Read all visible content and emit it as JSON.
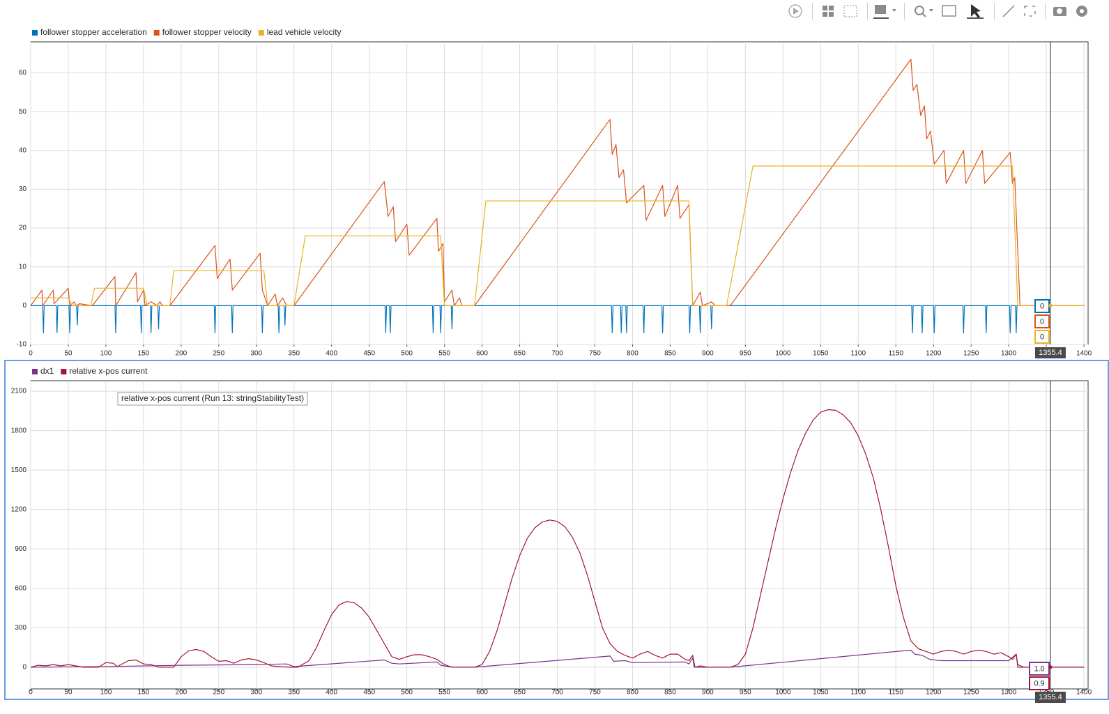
{
  "chart_data": [
    {
      "type": "line",
      "xlim": [
        0,
        1405.5
      ],
      "ylim": [
        -10,
        68
      ],
      "xticks": [
        0,
        50,
        100,
        150,
        200,
        250,
        300,
        350,
        400,
        450,
        500,
        550,
        600,
        650,
        700,
        750,
        800,
        850,
        900,
        950,
        1000,
        1050,
        1100,
        1150,
        1200,
        1250,
        1300,
        1350,
        1400
      ],
      "yticks": [
        -10,
        0,
        10,
        20,
        30,
        40,
        50,
        60
      ],
      "grid": true,
      "cursor": 1355.4,
      "series": [
        {
          "name": "follower stopper acceleration",
          "color": "#0072bd",
          "cursor_value": 0,
          "x": [
            0,
            16,
            17,
            18,
            34,
            35,
            36,
            51,
            52,
            53,
            61,
            62,
            63,
            112,
            113,
            114,
            146,
            147,
            148,
            159,
            160,
            161,
            169,
            170,
            171,
            244,
            245,
            246,
            267,
            268,
            269,
            307,
            308,
            309,
            329,
            330,
            331,
            337,
            338,
            339,
            471,
            472,
            473,
            477,
            478,
            479,
            534,
            535,
            536,
            544,
            545,
            546,
            559,
            560,
            561,
            772,
            773,
            774,
            784,
            785,
            786,
            791,
            792,
            793,
            814,
            815,
            816,
            839,
            840,
            841,
            875,
            876,
            877,
            889,
            890,
            891,
            904,
            905,
            906,
            1171,
            1172,
            1173,
            1184,
            1185,
            1186,
            1200,
            1201,
            1202,
            1239,
            1240,
            1241,
            1269,
            1270,
            1271,
            1301,
            1302,
            1303,
            1309,
            1310,
            1311,
            1400
          ],
          "values": [
            0,
            0,
            -7,
            0,
            0,
            -7,
            0,
            0,
            -7,
            0,
            0,
            -5,
            0,
            0,
            -7,
            0,
            0,
            -7,
            0,
            0,
            -7,
            0,
            0,
            -6,
            0,
            0,
            -7,
            0,
            0,
            -7,
            0,
            0,
            -7,
            0,
            0,
            -7,
            0,
            0,
            -5,
            0,
            0,
            -7,
            0,
            0,
            -7,
            0,
            0,
            -7,
            0,
            0,
            -7,
            0,
            0,
            -6,
            0,
            0,
            -7,
            0,
            0,
            -7,
            0,
            0,
            -7,
            0,
            0,
            -7,
            0,
            0,
            -7,
            0,
            0,
            -7,
            0,
            0,
            -7,
            0,
            0,
            -6,
            0,
            0,
            -7,
            0,
            0,
            -7,
            0,
            0,
            -7,
            0,
            0,
            -7,
            0,
            0,
            -7,
            0,
            0,
            -7,
            0,
            0,
            -7,
            0,
            0
          ]
        },
        {
          "name": "follower stopper velocity",
          "color": "#d95319",
          "cursor_value": 0,
          "x": [
            0,
            15,
            16,
            30,
            31,
            50,
            52,
            58,
            60,
            65,
            82,
            112,
            113,
            140,
            142,
            150,
            152,
            160,
            168,
            172,
            175,
            185,
            245,
            248,
            265,
            268,
            305,
            308,
            315,
            325,
            328,
            335,
            340,
            350,
            470,
            475,
            482,
            485,
            500,
            503,
            540,
            542,
            548,
            550,
            560,
            563,
            570,
            573,
            590,
            770,
            773,
            778,
            782,
            788,
            792,
            815,
            818,
            840,
            843,
            860,
            863,
            875,
            880,
            890,
            893,
            905,
            910,
            930,
            1170,
            1173,
            1178,
            1183,
            1188,
            1191,
            1196,
            1201,
            1214,
            1217,
            1240,
            1243,
            1265,
            1268,
            1302,
            1305,
            1308,
            1315,
            1320,
            1400
          ],
          "values": [
            0,
            4,
            0,
            4,
            0.5,
            4.5,
            0,
            1,
            0,
            0.5,
            0,
            7.5,
            0,
            8.5,
            1,
            4,
            0,
            1,
            0,
            1,
            0,
            0,
            15.5,
            7,
            12,
            4,
            13.5,
            4,
            0,
            3,
            0,
            2,
            0,
            0,
            32,
            23,
            25.5,
            16.5,
            21,
            13,
            22.5,
            14,
            16,
            1,
            4,
            0,
            2,
            0,
            0,
            48,
            39,
            41.5,
            33,
            35,
            26.5,
            31,
            22,
            31,
            23,
            31,
            22.5,
            26,
            0,
            3.5,
            0,
            1,
            0,
            0,
            63.5,
            55.5,
            57,
            49,
            51.5,
            43,
            45,
            36.5,
            40,
            31.5,
            40,
            31.5,
            40,
            31.5,
            39.5,
            31.5,
            33,
            0,
            0,
            0
          ]
        },
        {
          "name": "lead vehicle velocity",
          "color": "#edb120",
          "cursor_value": 0,
          "x": [
            0,
            50,
            55,
            80,
            85,
            150,
            155,
            185,
            190,
            310,
            315,
            350,
            365,
            545,
            550,
            590,
            605,
            875,
            880,
            925,
            960,
            1305,
            1312,
            1400
          ],
          "values": [
            2,
            2,
            0,
            0,
            4.5,
            4.5,
            0,
            0,
            9,
            9,
            0,
            0,
            18,
            18,
            0,
            0,
            27,
            27,
            0,
            0,
            36,
            36,
            0,
            0
          ]
        }
      ]
    },
    {
      "type": "line",
      "xlim": [
        0,
        1405.5
      ],
      "ylim": [
        -165,
        2180
      ],
      "xticks": [
        0,
        50,
        100,
        150,
        200,
        250,
        300,
        350,
        400,
        450,
        500,
        550,
        600,
        650,
        700,
        750,
        800,
        850,
        900,
        950,
        1000,
        1050,
        1100,
        1150,
        1200,
        1250,
        1300,
        1350,
        1400
      ],
      "yticks": [
        0,
        300,
        600,
        900,
        1200,
        1500,
        1800,
        2100
      ],
      "grid": true,
      "cursor": 1355.4,
      "annotation": "relative x-pos current (Run 13: stringStabilityTest)",
      "series": [
        {
          "name": "dx1",
          "color": "#7e2f8e",
          "cursor_value": {
            "value": 1,
            "label": "1.0"
          },
          "x": [
            0,
            100,
            200,
            300,
            340,
            350,
            470,
            480,
            490,
            540,
            545,
            560,
            590,
            770,
            775,
            790,
            800,
            870,
            875,
            880,
            882,
            900,
            930,
            1170,
            1175,
            1185,
            1195,
            1210,
            1300,
            1310,
            1312,
            1320,
            1400
          ],
          "values": [
            0,
            5,
            15,
            20,
            25,
            5,
            55,
            30,
            25,
            40,
            15,
            0,
            0,
            85,
            45,
            50,
            35,
            40,
            25,
            70,
            0,
            0,
            0,
            130,
            100,
            90,
            60,
            50,
            50,
            100,
            20,
            0,
            0
          ]
        },
        {
          "name": "relative x-pos current",
          "color": "#a2142f",
          "cursor_value": {
            "value": 0.9,
            "label": "0.9"
          },
          "x": [
            0,
            10,
            20,
            30,
            40,
            50,
            60,
            70,
            90,
            100,
            110,
            115,
            130,
            140,
            150,
            160,
            170,
            190,
            200,
            210,
            220,
            230,
            240,
            250,
            260,
            270,
            280,
            290,
            300,
            310,
            320,
            330,
            345,
            355,
            370,
            380,
            390,
            400,
            410,
            420,
            430,
            440,
            450,
            460,
            470,
            480,
            490,
            500,
            510,
            520,
            530,
            540,
            550,
            560,
            590,
            600,
            610,
            620,
            630,
            640,
            650,
            660,
            670,
            680,
            690,
            700,
            710,
            720,
            730,
            740,
            750,
            760,
            770,
            780,
            790,
            800,
            810,
            820,
            830,
            840,
            850,
            860,
            870,
            875,
            880,
            883,
            890,
            900,
            930,
            940,
            950,
            960,
            970,
            980,
            990,
            1000,
            1010,
            1020,
            1030,
            1040,
            1050,
            1060,
            1070,
            1080,
            1090,
            1100,
            1110,
            1120,
            1130,
            1140,
            1150,
            1160,
            1170,
            1180,
            1190,
            1200,
            1210,
            1220,
            1230,
            1240,
            1250,
            1260,
            1270,
            1280,
            1290,
            1300,
            1305,
            1310,
            1312,
            1400
          ],
          "values": [
            0,
            15,
            10,
            20,
            10,
            20,
            10,
            0,
            0,
            35,
            30,
            5,
            50,
            55,
            25,
            20,
            0,
            0,
            80,
            125,
            135,
            120,
            80,
            45,
            50,
            30,
            55,
            65,
            55,
            35,
            10,
            5,
            0,
            0,
            50,
            150,
            280,
            400,
            475,
            500,
            490,
            450,
            380,
            280,
            180,
            80,
            60,
            80,
            95,
            95,
            80,
            60,
            20,
            0,
            0,
            20,
            120,
            280,
            480,
            680,
            850,
            980,
            1060,
            1105,
            1120,
            1110,
            1070,
            990,
            870,
            700,
            500,
            300,
            180,
            120,
            90,
            70,
            100,
            120,
            90,
            70,
            100,
            100,
            60,
            50,
            90,
            0,
            10,
            0,
            0,
            20,
            100,
            300,
            550,
            800,
            1050,
            1280,
            1480,
            1650,
            1780,
            1880,
            1940,
            1960,
            1955,
            1920,
            1860,
            1760,
            1620,
            1440,
            1200,
            920,
            620,
            380,
            200,
            140,
            120,
            100,
            120,
            130,
            120,
            100,
            120,
            130,
            120,
            100,
            110,
            80,
            60,
            100,
            0,
            0
          ]
        }
      ]
    }
  ]
}
